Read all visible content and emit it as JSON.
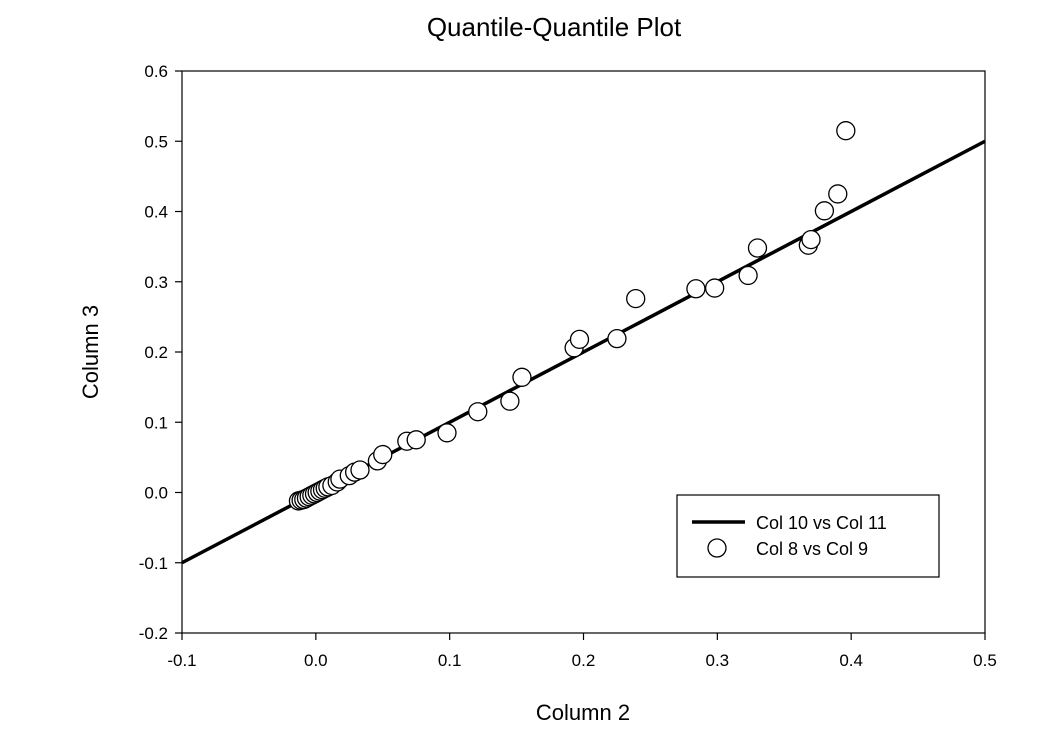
{
  "chart_data": {
    "type": "scatter",
    "title": "Quantile-Quantile Plot",
    "xlabel": "Column 2",
    "ylabel": "Column 3",
    "xlim": [
      -0.1,
      0.5
    ],
    "ylim": [
      -0.2,
      0.6
    ],
    "x_ticks": [
      "-0.1",
      "0.0",
      "0.1",
      "0.2",
      "0.3",
      "0.4",
      "0.5"
    ],
    "y_ticks": [
      "-0.2",
      "-0.1",
      "0.0",
      "0.1",
      "0.2",
      "0.3",
      "0.4",
      "0.5",
      "0.6"
    ],
    "grid": false,
    "legend_position": "lower-right",
    "series": [
      {
        "name": "Col 10 vs Col 11",
        "style": "line",
        "color": "#000000",
        "x": [
          -0.1,
          0.5
        ],
        "y": [
          -0.1,
          0.5
        ]
      },
      {
        "name": "Col 8 vs Col 9",
        "style": "open-circle",
        "color": "#000000",
        "x": [
          -0.013,
          -0.011,
          -0.009,
          -0.007,
          -0.005,
          -0.003,
          -0.001,
          0.001,
          0.003,
          0.005,
          0.007,
          0.009,
          0.012,
          0.016,
          0.018,
          0.025,
          0.029,
          0.033,
          0.046,
          0.05,
          0.068,
          0.075,
          0.098,
          0.121,
          0.145,
          0.154,
          0.193,
          0.197,
          0.225,
          0.239,
          0.284,
          0.298,
          0.323,
          0.33,
          0.368,
          0.37,
          0.38,
          0.39,
          0.396
        ],
        "y": [
          -0.012,
          -0.011,
          -0.01,
          -0.008,
          -0.006,
          -0.004,
          -0.002,
          0.0,
          0.002,
          0.004,
          0.006,
          0.008,
          0.01,
          0.015,
          0.019,
          0.024,
          0.029,
          0.032,
          0.045,
          0.054,
          0.073,
          0.075,
          0.085,
          0.115,
          0.13,
          0.164,
          0.206,
          0.218,
          0.219,
          0.276,
          0.29,
          0.291,
          0.309,
          0.348,
          0.352,
          0.36,
          0.401,
          0.425,
          0.515
        ]
      }
    ]
  }
}
